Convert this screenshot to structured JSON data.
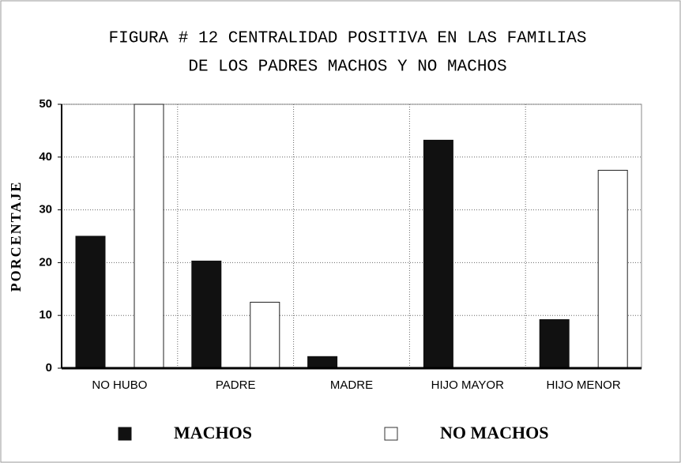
{
  "chart_data": {
    "type": "bar",
    "title": [
      "FIGURA #  12  CENTRALIDAD POSITIVA EN LAS FAMILIAS",
      "DE LOS PADRES MACHOS Y NO MACHOS"
    ],
    "y_label": "PORCENTAJE",
    "categories": [
      "NO HUBO",
      "PADRE",
      "MADRE",
      "HIJO MAYOR",
      "HIJO MENOR"
    ],
    "series": [
      {
        "name": "MACHOS",
        "color": "#111111",
        "values": [
          25,
          20.3,
          2.2,
          43.2,
          9.2
        ]
      },
      {
        "name": "NO MACHOS",
        "color": "#ffffff",
        "values": [
          50,
          12.5,
          0,
          0,
          37.5
        ]
      }
    ],
    "ylim": [
      0,
      50
    ],
    "yticks": [
      0,
      10,
      20,
      30,
      40,
      50
    ],
    "grid": true
  }
}
